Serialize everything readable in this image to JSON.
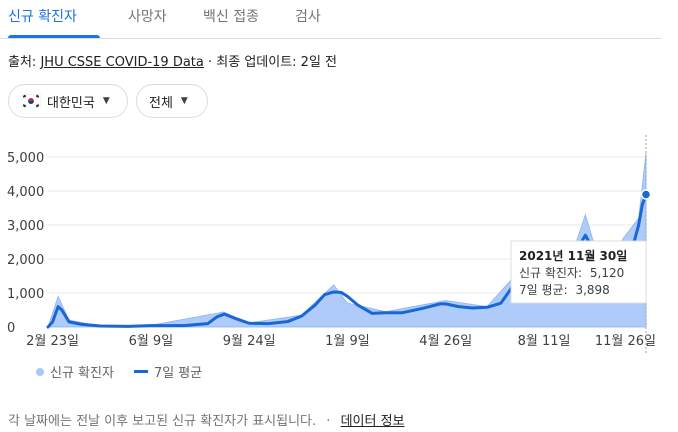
{
  "tabs": [
    {
      "label": "신규 확진자",
      "active": true
    },
    {
      "label": "사망자",
      "active": false
    },
    {
      "label": "백신 접종",
      "active": false
    },
    {
      "label": "검사",
      "active": false
    }
  ],
  "source": {
    "prefix": "출처:",
    "link": "JHU CSSE COVID-19 Data",
    "suffix": "· 최종 업데이트: 2일 전"
  },
  "filters": {
    "country": "대한민국",
    "region": "전체"
  },
  "tooltip": {
    "date": "2021년 11월 30일",
    "cases_label": "신규 확진자:",
    "cases_value": "5,120",
    "avg_label": "7일 평균:",
    "avg_value": "3,898"
  },
  "legend": {
    "cases": "신규 확진자",
    "avg": "7일 평균"
  },
  "footer": {
    "note": "각 날짜에는 전날 이후 보고된 신규 확진자가 표시됩니다.",
    "sep": "·",
    "link": "데이터 정보"
  },
  "colors": {
    "accent": "#1a73e8",
    "area": "#aecbfa",
    "line": "#1967d2"
  },
  "chart_data": {
    "type": "area",
    "ylim": [
      0,
      5000
    ],
    "y_ticks": [
      0,
      1000,
      2000,
      3000,
      4000,
      5000
    ],
    "y_tick_labels": [
      "0",
      "1,000",
      "2,000",
      "3,000",
      "4,000",
      "5,000"
    ],
    "x_tick_labels": [
      "2월 23일",
      "6월 9일",
      "9월 24일",
      "1월 9일",
      "4월 26일",
      "8월 11일",
      "11월 26일"
    ],
    "grid": true,
    "legend_position": "bottom-left",
    "series": [
      {
        "name": "7일 평균",
        "x": [
          "2020-02-18",
          "2020-02-23",
          "2020-02-29",
          "2020-03-04",
          "2020-03-12",
          "2020-03-25",
          "2020-04-15",
          "2020-05-15",
          "2020-06-09",
          "2020-07-15",
          "2020-08-10",
          "2020-08-20",
          "2020-08-28",
          "2020-09-10",
          "2020-09-24",
          "2020-10-15",
          "2020-11-05",
          "2020-11-20",
          "2020-12-05",
          "2020-12-15",
          "2020-12-25",
          "2021-01-02",
          "2021-01-09",
          "2021-01-20",
          "2021-02-05",
          "2021-02-20",
          "2021-03-10",
          "2021-04-01",
          "2021-04-20",
          "2021-04-26",
          "2021-05-10",
          "2021-05-25",
          "2021-06-10",
          "2021-06-25",
          "2021-07-08",
          "2021-07-20",
          "2021-08-01",
          "2021-08-11",
          "2021-08-25",
          "2021-09-10",
          "2021-09-25",
          "2021-10-05",
          "2021-10-15",
          "2021-10-25",
          "2021-11-05",
          "2021-11-15",
          "2021-11-22",
          "2021-11-26",
          "2021-11-30"
        ],
        "values": [
          0,
          150,
          600,
          500,
          150,
          80,
          30,
          20,
          40,
          40,
          100,
          300,
          380,
          240,
          110,
          100,
          160,
          320,
          650,
          950,
          1030,
          1020,
          900,
          650,
          400,
          420,
          420,
          550,
          680,
          680,
          600,
          560,
          580,
          700,
          1200,
          1550,
          1600,
          1900,
          1950,
          2000,
          2700,
          2200,
          1600,
          1550,
          2100,
          2300,
          3000,
          3600,
          3898
        ]
      },
      {
        "name": "신규 확진자",
        "x": [
          "2020-02-18",
          "2020-02-29",
          "2020-03-12",
          "2020-04-15",
          "2020-06-09",
          "2020-08-27",
          "2020-09-24",
          "2020-11-20",
          "2020-12-25",
          "2021-01-09",
          "2021-02-20",
          "2021-04-26",
          "2021-06-10",
          "2021-07-20",
          "2021-08-11",
          "2021-09-10",
          "2021-09-25",
          "2021-10-15",
          "2021-11-05",
          "2021-11-22",
          "2021-11-30"
        ],
        "values": [
          0,
          900,
          200,
          30,
          50,
          440,
          120,
          350,
          1240,
          700,
          450,
          780,
          600,
          1800,
          2200,
          2100,
          3300,
          1500,
          2600,
          3200,
          5120
        ]
      }
    ]
  }
}
